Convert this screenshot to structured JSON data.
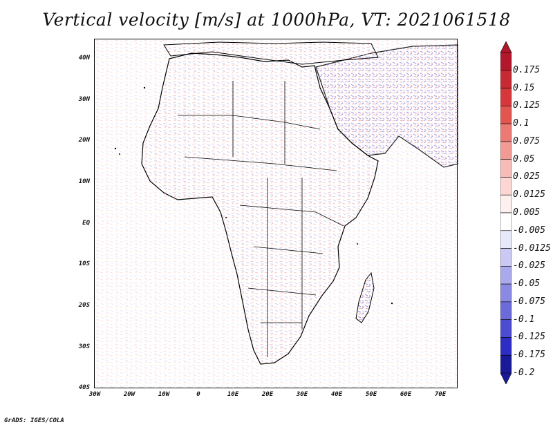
{
  "title": "Vertical velocity [m/s] at 1000hPa, VT: 2021061518",
  "y_ticks": [
    "40N",
    "30N",
    "20N",
    "10N",
    "EQ",
    "10S",
    "20S",
    "30S",
    "40S"
  ],
  "x_ticks": [
    "30W",
    "20W",
    "10W",
    "0",
    "10E",
    "20E",
    "30E",
    "40E",
    "50E",
    "60E",
    "70E"
  ],
  "colorbar": {
    "labels": [
      "0.175",
      "0.15",
      "0.125",
      "0.1",
      "0.075",
      "0.05",
      "0.025",
      "0.0125",
      "0.005",
      "-0.005",
      "-0.0125",
      "-0.025",
      "-0.05",
      "-0.075",
      "-0.1",
      "-0.125",
      "-0.175",
      "-0.2"
    ],
    "colors": [
      "#b2182b",
      "#c62a32",
      "#d6373b",
      "#e25650",
      "#ec7a74",
      "#f29b95",
      "#f7bcb7",
      "#fbd6d2",
      "#fdf0ee",
      "#ffffff",
      "#e8e8fb",
      "#c9c9f4",
      "#a9a9ec",
      "#8a8ae3",
      "#6b6bda",
      "#4c4cd0",
      "#2d2dc4",
      "#1a1a99"
    ]
  },
  "credit": "GrADS: IGES/COLA"
}
